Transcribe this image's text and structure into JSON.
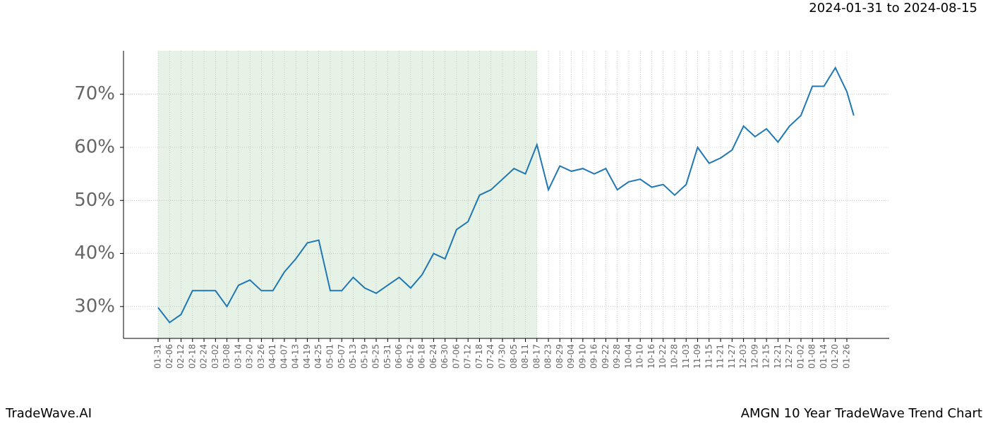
{
  "chart_data": {
    "type": "line",
    "title": "2024-01-31 to 2024-08-15",
    "footer_left": "TradeWave.AI",
    "footer_right": "AMGN 10 Year TradeWave Trend Chart",
    "categories": [
      "01-31",
      "02-06",
      "02-12",
      "02-18",
      "02-24",
      "03-02",
      "03-08",
      "03-14",
      "03-20",
      "03-26",
      "04-01",
      "04-07",
      "04-13",
      "04-19",
      "04-25",
      "05-01",
      "05-07",
      "05-13",
      "05-19",
      "05-25",
      "05-31",
      "06-06",
      "06-12",
      "06-18",
      "06-24",
      "06-30",
      "07-06",
      "07-12",
      "07-18",
      "07-24",
      "07-30",
      "08-05",
      "08-11",
      "08-17",
      "08-23",
      "08-29",
      "09-04",
      "09-10",
      "09-16",
      "09-22",
      "09-28",
      "10-04",
      "10-10",
      "10-16",
      "10-22",
      "10-28",
      "11-03",
      "11-09",
      "11-15",
      "11-21",
      "11-27",
      "12-03",
      "12-09",
      "12-15",
      "12-21",
      "12-27",
      "01-02",
      "01-08",
      "01-14",
      "01-20",
      "01-26",
      null
    ],
    "series": [
      {
        "name": "AMGN",
        "color": "#1f77b4",
        "values": [
          29.8,
          27,
          28.5,
          33,
          33,
          33,
          30,
          34,
          35,
          33,
          33,
          36.5,
          39,
          42,
          42.5,
          33,
          33,
          35.5,
          33.5,
          32.5,
          34,
          35.5,
          33.5,
          36,
          40,
          39,
          44.5,
          46,
          51,
          52,
          54,
          56,
          55,
          60.5,
          52,
          56.5,
          55.5,
          56,
          55,
          56,
          52,
          53.5,
          54,
          52.5,
          53,
          51,
          53,
          60,
          57,
          58,
          59.5,
          64,
          62,
          63.5,
          61,
          64,
          66,
          71.5,
          71.5,
          75,
          70.5,
          66
        ]
      }
    ],
    "ylim": [
      24,
      78.2
    ],
    "yticks": [
      {
        "value": 30,
        "label": "30%"
      },
      {
        "value": 40,
        "label": "40%"
      },
      {
        "value": 50,
        "label": "50%"
      },
      {
        "value": 60,
        "label": "60%"
      },
      {
        "value": 70,
        "label": "70%"
      }
    ],
    "grid": true,
    "highlight": {
      "from": "01-31",
      "to": "08-17",
      "color": "#e6f2e6"
    }
  }
}
